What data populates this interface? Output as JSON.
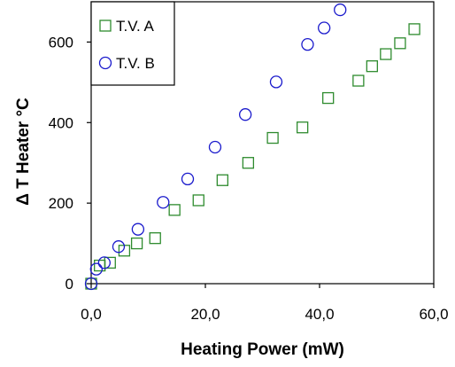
{
  "chart_data": {
    "type": "scatter",
    "xlabel": "Heating Power (mW)",
    "ylabel": "Δ T Heater °C",
    "xlim": [
      0,
      60
    ],
    "ylim": [
      0,
      700
    ],
    "xticks": [
      0,
      20,
      40,
      60
    ],
    "xtick_labels": [
      "0,0",
      "20,0",
      "40,0",
      "60,0"
    ],
    "yticks": [
      0,
      200,
      400,
      600
    ],
    "ytick_labels": [
      "0",
      "200",
      "400",
      "600"
    ],
    "grid": false,
    "legend_position": "top-left",
    "series": [
      {
        "name": "T.V. A",
        "marker": "square",
        "color": "#2e8b2e",
        "points": [
          [
            0,
            0
          ],
          [
            1.5,
            45
          ],
          [
            3.3,
            52
          ],
          [
            5.8,
            82
          ],
          [
            8.0,
            100
          ],
          [
            11.2,
            113
          ],
          [
            14.6,
            183
          ],
          [
            18.8,
            207
          ],
          [
            23.0,
            257
          ],
          [
            27.5,
            300
          ],
          [
            31.8,
            362
          ],
          [
            37.0,
            388
          ],
          [
            41.5,
            461
          ],
          [
            46.8,
            504
          ],
          [
            49.2,
            540
          ],
          [
            51.6,
            570
          ],
          [
            54.1,
            597
          ],
          [
            56.6,
            632
          ]
        ]
      },
      {
        "name": "T.V. B",
        "marker": "circle",
        "color": "#1a1acc",
        "points": [
          [
            0,
            0
          ],
          [
            0.9,
            36
          ],
          [
            2.3,
            52
          ],
          [
            4.8,
            92
          ],
          [
            8.2,
            135
          ],
          [
            12.6,
            202
          ],
          [
            16.9,
            260
          ],
          [
            21.7,
            339
          ],
          [
            27.0,
            420
          ],
          [
            32.4,
            501
          ],
          [
            37.9,
            594
          ],
          [
            40.8,
            635
          ],
          [
            43.6,
            680
          ]
        ]
      }
    ]
  }
}
